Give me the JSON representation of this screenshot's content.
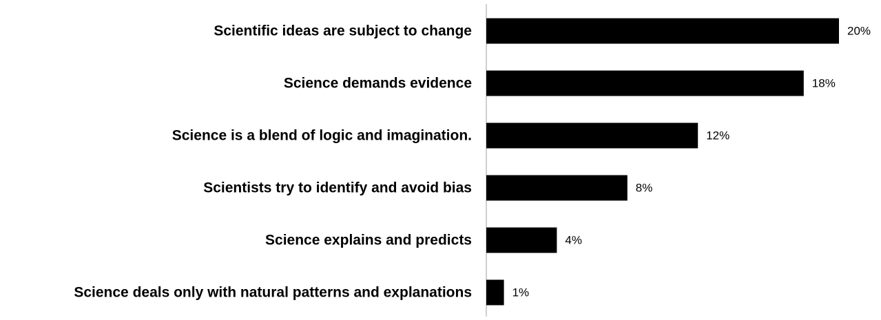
{
  "chart_data": {
    "type": "bar",
    "orientation": "horizontal",
    "categories": [
      "Scientific ideas are subject to change",
      "Science demands evidence",
      "Science is a blend of logic and imagination.",
      "Scientists try to identify and avoid bias",
      "Science explains and predicts",
      "Science deals only with natural patterns and explanations"
    ],
    "values": [
      20,
      18,
      12,
      8,
      4,
      1
    ],
    "value_labels": [
      "20%",
      "18%",
      "12%",
      "8%",
      "4%",
      "1%"
    ],
    "value_unit": "%",
    "xlim": [
      0,
      20
    ],
    "grid": false,
    "legend": "none",
    "bar_color": "#000000",
    "axis_color": "#bfbfbf"
  }
}
